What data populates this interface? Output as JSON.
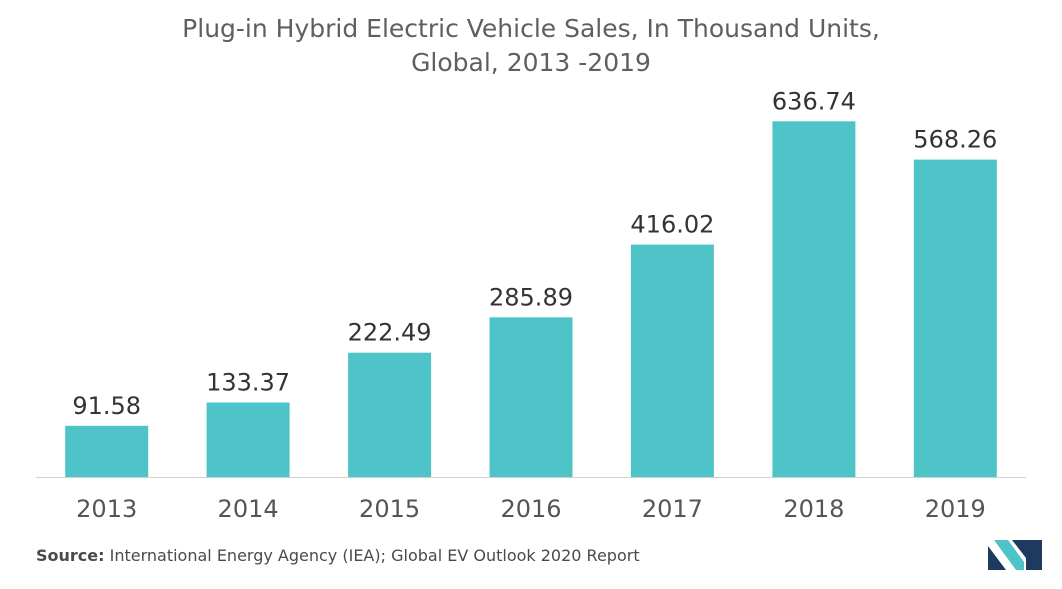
{
  "chart_data": {
    "type": "bar",
    "title_lines": [
      "Plug-in Hybrid Electric Vehicle Sales, In Thousand Units,",
      "Global, 2013 -2019"
    ],
    "categories": [
      "2013",
      "2014",
      "2015",
      "2016",
      "2017",
      "2018",
      "2019"
    ],
    "values": [
      91.58,
      133.37,
      222.49,
      285.89,
      416.02,
      636.74,
      568.26
    ],
    "data_labels": [
      "91.58",
      "133.37",
      "222.49",
      "285.89",
      "416.02",
      "636.74",
      "568.26"
    ],
    "ylim": [
      0,
      700
    ],
    "grid": false,
    "legend": "none",
    "bar_color": "#4fc4c8"
  },
  "source": {
    "label": "Source:",
    "text": " International Energy Agency (IEA); Global EV Outlook 2020 Report"
  },
  "logo": {
    "icon": "brand-logo-icon",
    "colors": [
      "#1f3a5f",
      "#4fc4c8"
    ]
  }
}
